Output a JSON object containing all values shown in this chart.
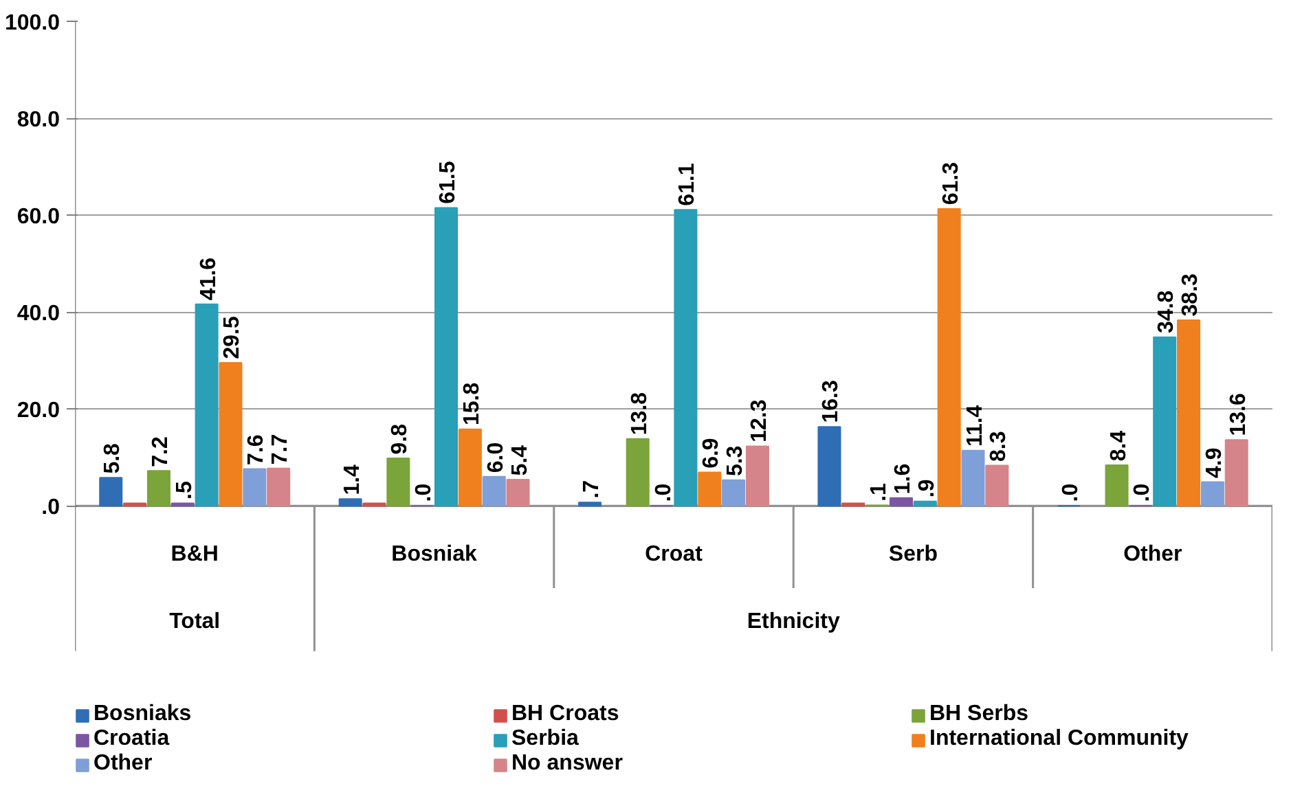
{
  "chart_data": {
    "type": "bar",
    "categories": [
      "B&H",
      "Bosniak",
      "Croat",
      "Serb",
      "Other"
    ],
    "annotations": [
      "Total",
      "Ethnicity"
    ],
    "series": [
      {
        "name": "Bosniaks",
        "color": "#2f6eb5",
        "values": [
          5.8,
          1.4,
          0.7,
          16.3,
          0.0
        ],
        "value_labels": [
          "5.8",
          "1.4",
          ".7",
          "16.3",
          ".0"
        ]
      },
      {
        "name": "BH Croats",
        "color": "#d2504c",
        "values": [
          0.5,
          0.5,
          null,
          0.5,
          null
        ],
        "value_labels": [
          null,
          null,
          null,
          null,
          null
        ]
      },
      {
        "name": "BH Serbs",
        "color": "#7ba43a",
        "values": [
          7.2,
          9.8,
          13.8,
          0.1,
          8.4
        ],
        "value_labels": [
          "7.2",
          "9.8",
          "13.8",
          ".1",
          "8.4"
        ]
      },
      {
        "name": "Croatia",
        "color": "#7b57a2",
        "values": [
          0.5,
          0.0,
          0.0,
          1.6,
          0.0
        ],
        "value_labels": [
          ".5",
          ".0",
          ".0",
          "1.6",
          ".0"
        ]
      },
      {
        "name": "Serbia",
        "color": "#2a9fb8",
        "values": [
          41.6,
          61.5,
          61.1,
          0.9,
          34.8
        ],
        "value_labels": [
          "41.6",
          "61.5",
          "61.1",
          ".9",
          "34.8"
        ]
      },
      {
        "name": "International Community",
        "color": "#f0801e",
        "values": [
          29.5,
          15.8,
          6.9,
          61.3,
          38.3
        ],
        "value_labels": [
          "29.5",
          "15.8",
          "6.9",
          "61.3",
          "38.3"
        ]
      },
      {
        "name": "Other",
        "color": "#7f9fd8",
        "values": [
          7.6,
          6.0,
          5.3,
          11.4,
          4.9
        ],
        "value_labels": [
          "7.6",
          "6.0",
          "5.3",
          "11.4",
          "4.9"
        ]
      },
      {
        "name": "No answer",
        "color": "#d58589",
        "values": [
          7.7,
          5.4,
          12.3,
          8.3,
          13.6
        ],
        "value_labels": [
          "7.7",
          "5.4",
          "12.3",
          "8.3",
          "13.6"
        ]
      }
    ],
    "ylim": [
      0,
      100
    ],
    "yticks": [
      {
        "value": 0,
        "label": ".0"
      },
      {
        "value": 20,
        "label": "20.0"
      },
      {
        "value": 40,
        "label": "40.0"
      },
      {
        "value": 60,
        "label": "60.0"
      },
      {
        "value": 80,
        "label": "80.0"
      },
      {
        "value": 100,
        "label": "100.0"
      }
    ],
    "grid": "y",
    "legend": "bottom"
  }
}
